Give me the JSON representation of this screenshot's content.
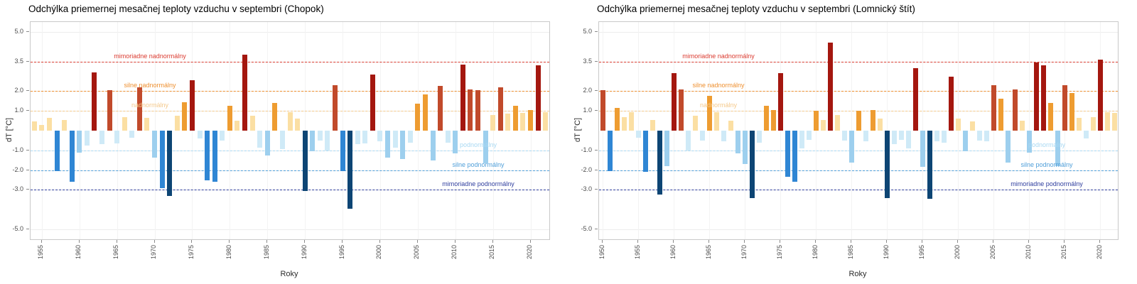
{
  "y_axis": {
    "label": "dT [°C]",
    "limits": [
      -5.5,
      5.5
    ],
    "grid": true,
    "ticks": [
      {
        "value": 5.0,
        "label": "5.0"
      },
      {
        "value": 3.5,
        "label": "3.5"
      },
      {
        "value": 2.0,
        "label": "2.0"
      },
      {
        "value": 1.0,
        "label": "1.0"
      },
      {
        "value": -1.0,
        "label": "-1.0"
      },
      {
        "value": -2.0,
        "label": "-2.0"
      },
      {
        "value": -3.0,
        "label": "-3.0"
      },
      {
        "value": -5.0,
        "label": "-5.0"
      }
    ]
  },
  "x_axis": {
    "label": "Roky",
    "tick_interval": 5
  },
  "thresholds": [
    {
      "value": 3.5,
      "label": "mimoriadne nadnormálny",
      "color": "#DB3B30",
      "side": "left"
    },
    {
      "value": 2.0,
      "label": "silne nadnormálny",
      "color": "#EE8F2F",
      "side": "left"
    },
    {
      "value": 1.0,
      "label": "nadnormálny",
      "color": "#F5C98B",
      "side": "left"
    },
    {
      "value": -1.0,
      "label": "podnormálny",
      "color": "#A9D9F3",
      "side": "right"
    },
    {
      "value": -2.0,
      "label": "silne podnormálny",
      "color": "#4F9FD9",
      "side": "right"
    },
    {
      "value": -3.0,
      "label": "mimoriadne podnormálny",
      "color": "#2F3E9E",
      "side": "right"
    }
  ],
  "color_scale": [
    {
      "gte": 2.5,
      "color": "#A4170F",
      "name": "extremely-above-normal"
    },
    {
      "gte": 2.0,
      "color": "#C14A2B",
      "name": "strongly-above-normal"
    },
    {
      "gte": 1.0,
      "color": "#EE9C31",
      "name": "above-normal"
    },
    {
      "gte": 0.0,
      "color": "#FBDFA3",
      "name": "mildly-above-normal"
    },
    {
      "gte": -1.0,
      "color": "#CFEAF7",
      "name": "mildly-below-normal"
    },
    {
      "gte": -2.0,
      "color": "#9DCFEE",
      "name": "below-normal"
    },
    {
      "gte": -3.0,
      "color": "#2F86D4",
      "name": "strongly-below-normal"
    },
    {
      "gte": -999,
      "color": "#0D4574",
      "name": "extremely-below-normal"
    }
  ],
  "chart_data": [
    {
      "type": "bar",
      "title": "Odchýlka priemernej mesačnej teploty vzduchu v septembri (Chopok)",
      "xlabel": "Roky",
      "ylabel": "dT [°C]",
      "year_start": 1954,
      "year_end": 2022,
      "values": [
        0.45,
        0.3,
        0.65,
        -2.05,
        0.55,
        -2.6,
        -1.1,
        -0.75,
        2.95,
        -0.7,
        2.05,
        -0.65,
        0.7,
        -0.35,
        2.2,
        0.65,
        -1.35,
        -2.9,
        -3.3,
        0.75,
        1.45,
        2.55,
        -0.4,
        -2.5,
        -2.6,
        -0.5,
        1.25,
        0.5,
        3.85,
        0.75,
        -0.85,
        -1.25,
        1.4,
        -0.95,
        0.95,
        0.6,
        -3.05,
        -1.05,
        -0.5,
        -1.0,
        2.3,
        -2.05,
        -3.95,
        -0.7,
        -0.65,
        2.85,
        -0.55,
        -1.35,
        -0.85,
        -1.45,
        -0.6,
        1.35,
        1.85,
        -1.5,
        2.25,
        -0.6,
        -1.15,
        3.35,
        2.1,
        2.05,
        -1.65,
        0.8,
        2.2,
        0.85,
        1.25,
        0.9,
        1.05,
        3.3,
        0.95
      ]
    },
    {
      "type": "bar",
      "title": "Odchýlka priemernej mesačnej teploty vzduchu v septembri (Lomnický štít)",
      "xlabel": "Roky",
      "ylabel": "dT [°C]",
      "year_start": 1950,
      "year_end": 2022,
      "values": [
        2.05,
        -2.05,
        1.15,
        0.7,
        0.95,
        -0.35,
        -2.1,
        0.55,
        -3.25,
        -1.8,
        2.9,
        2.1,
        -1.0,
        0.75,
        -0.5,
        1.75,
        0.95,
        -0.55,
        0.5,
        -1.15,
        -1.7,
        -3.4,
        -0.6,
        1.25,
        1.05,
        2.9,
        -2.35,
        -2.6,
        -0.9,
        -0.45,
        1.0,
        0.55,
        4.45,
        0.8,
        -0.5,
        -1.6,
        1.0,
        -0.55,
        1.05,
        0.6,
        -3.4,
        -0.7,
        -0.45,
        -0.9,
        3.15,
        -1.85,
        -3.45,
        -0.55,
        -0.6,
        2.75,
        0.6,
        -1.05,
        0.45,
        -0.5,
        -0.55,
        2.3,
        1.6,
        -1.6,
        2.1,
        0.5,
        -1.1,
        3.45,
        3.3,
        1.4,
        -1.8,
        2.3,
        1.9,
        0.65,
        -0.4,
        0.7,
        3.6,
        0.95,
        0.9
      ]
    }
  ]
}
